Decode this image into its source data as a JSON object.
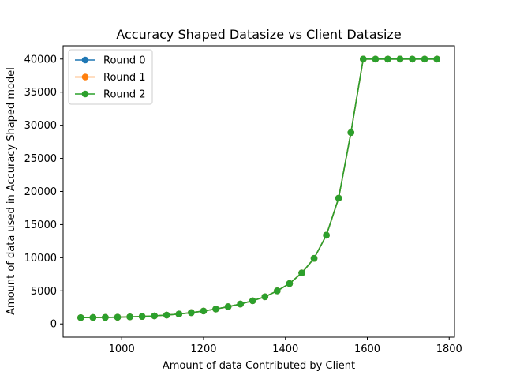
{
  "chart_data": {
    "type": "line",
    "title": "Accuracy Shaped Datasize vs Client Datasize",
    "xlabel": "Amount of data Contributed by Client",
    "ylabel": "Amount of data used in Accuracy Shaped model",
    "xlim": [
      857,
      1813
    ],
    "ylim": [
      -2000,
      42000
    ],
    "xticks": [
      1000,
      1200,
      1400,
      1600,
      1800
    ],
    "yticks": [
      0,
      5000,
      10000,
      15000,
      20000,
      25000,
      30000,
      35000,
      40000
    ],
    "legend_position": "upper-left",
    "grid": false,
    "x": [
      900,
      930,
      960,
      990,
      1020,
      1050,
      1080,
      1110,
      1140,
      1170,
      1200,
      1230,
      1260,
      1290,
      1320,
      1350,
      1380,
      1410,
      1440,
      1470,
      1500,
      1530,
      1560,
      1590,
      1620,
      1650,
      1680,
      1710,
      1740,
      1770
    ],
    "series": [
      {
        "name": "Round 0",
        "color": "#1f77b4",
        "values": [
          950,
          970,
          990,
          1020,
          1070,
          1130,
          1220,
          1340,
          1500,
          1700,
          1950,
          2250,
          2600,
          3000,
          3500,
          4100,
          5000,
          6100,
          7700,
          9900,
          13400,
          19000,
          28900,
          40000,
          40000,
          40000,
          40000,
          40000,
          40000,
          40000
        ]
      },
      {
        "name": "Round 1",
        "color": "#ff7f0e",
        "values": [
          950,
          970,
          990,
          1020,
          1070,
          1130,
          1220,
          1340,
          1500,
          1700,
          1950,
          2250,
          2600,
          3000,
          3500,
          4100,
          5000,
          6100,
          7700,
          9900,
          13400,
          19000,
          28900,
          40000,
          40000,
          40000,
          40000,
          40000,
          40000,
          40000
        ]
      },
      {
        "name": "Round 2",
        "color": "#2ca02c",
        "values": [
          950,
          970,
          990,
          1020,
          1070,
          1130,
          1220,
          1340,
          1500,
          1700,
          1950,
          2250,
          2600,
          3000,
          3500,
          4100,
          5000,
          6100,
          7700,
          9900,
          13400,
          19000,
          28900,
          40000,
          40000,
          40000,
          40000,
          40000,
          40000,
          40000
        ]
      }
    ]
  }
}
